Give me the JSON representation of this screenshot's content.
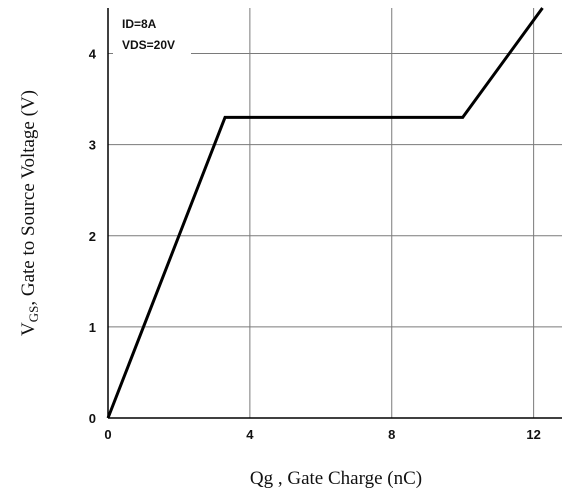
{
  "chart_data": {
    "type": "line",
    "title": "",
    "xlabel": "Qg , Gate Charge (nC)",
    "ylabel": {
      "main": "V",
      "subscript": "GS",
      "rest": ", Gate to Source Voltage (V)"
    },
    "xlim": [
      0,
      12.8
    ],
    "ylim": [
      0,
      4.5
    ],
    "xticks": [
      0,
      4,
      8,
      12
    ],
    "yticks": [
      0,
      1,
      2,
      3,
      4
    ],
    "xtick_labels": [
      "0",
      "4",
      "8",
      "12"
    ],
    "ytick_labels": [
      "0",
      "1",
      "2",
      "3",
      "4"
    ],
    "grid": true,
    "legend_position": "top-left",
    "annotations": [
      "ID=8A",
      "VDS=20V"
    ],
    "series": [
      {
        "color": "#000000",
        "x": [
          0,
          3.3,
          10.0,
          12.25
        ],
        "y": [
          0,
          3.3,
          3.3,
          4.5
        ]
      }
    ]
  }
}
